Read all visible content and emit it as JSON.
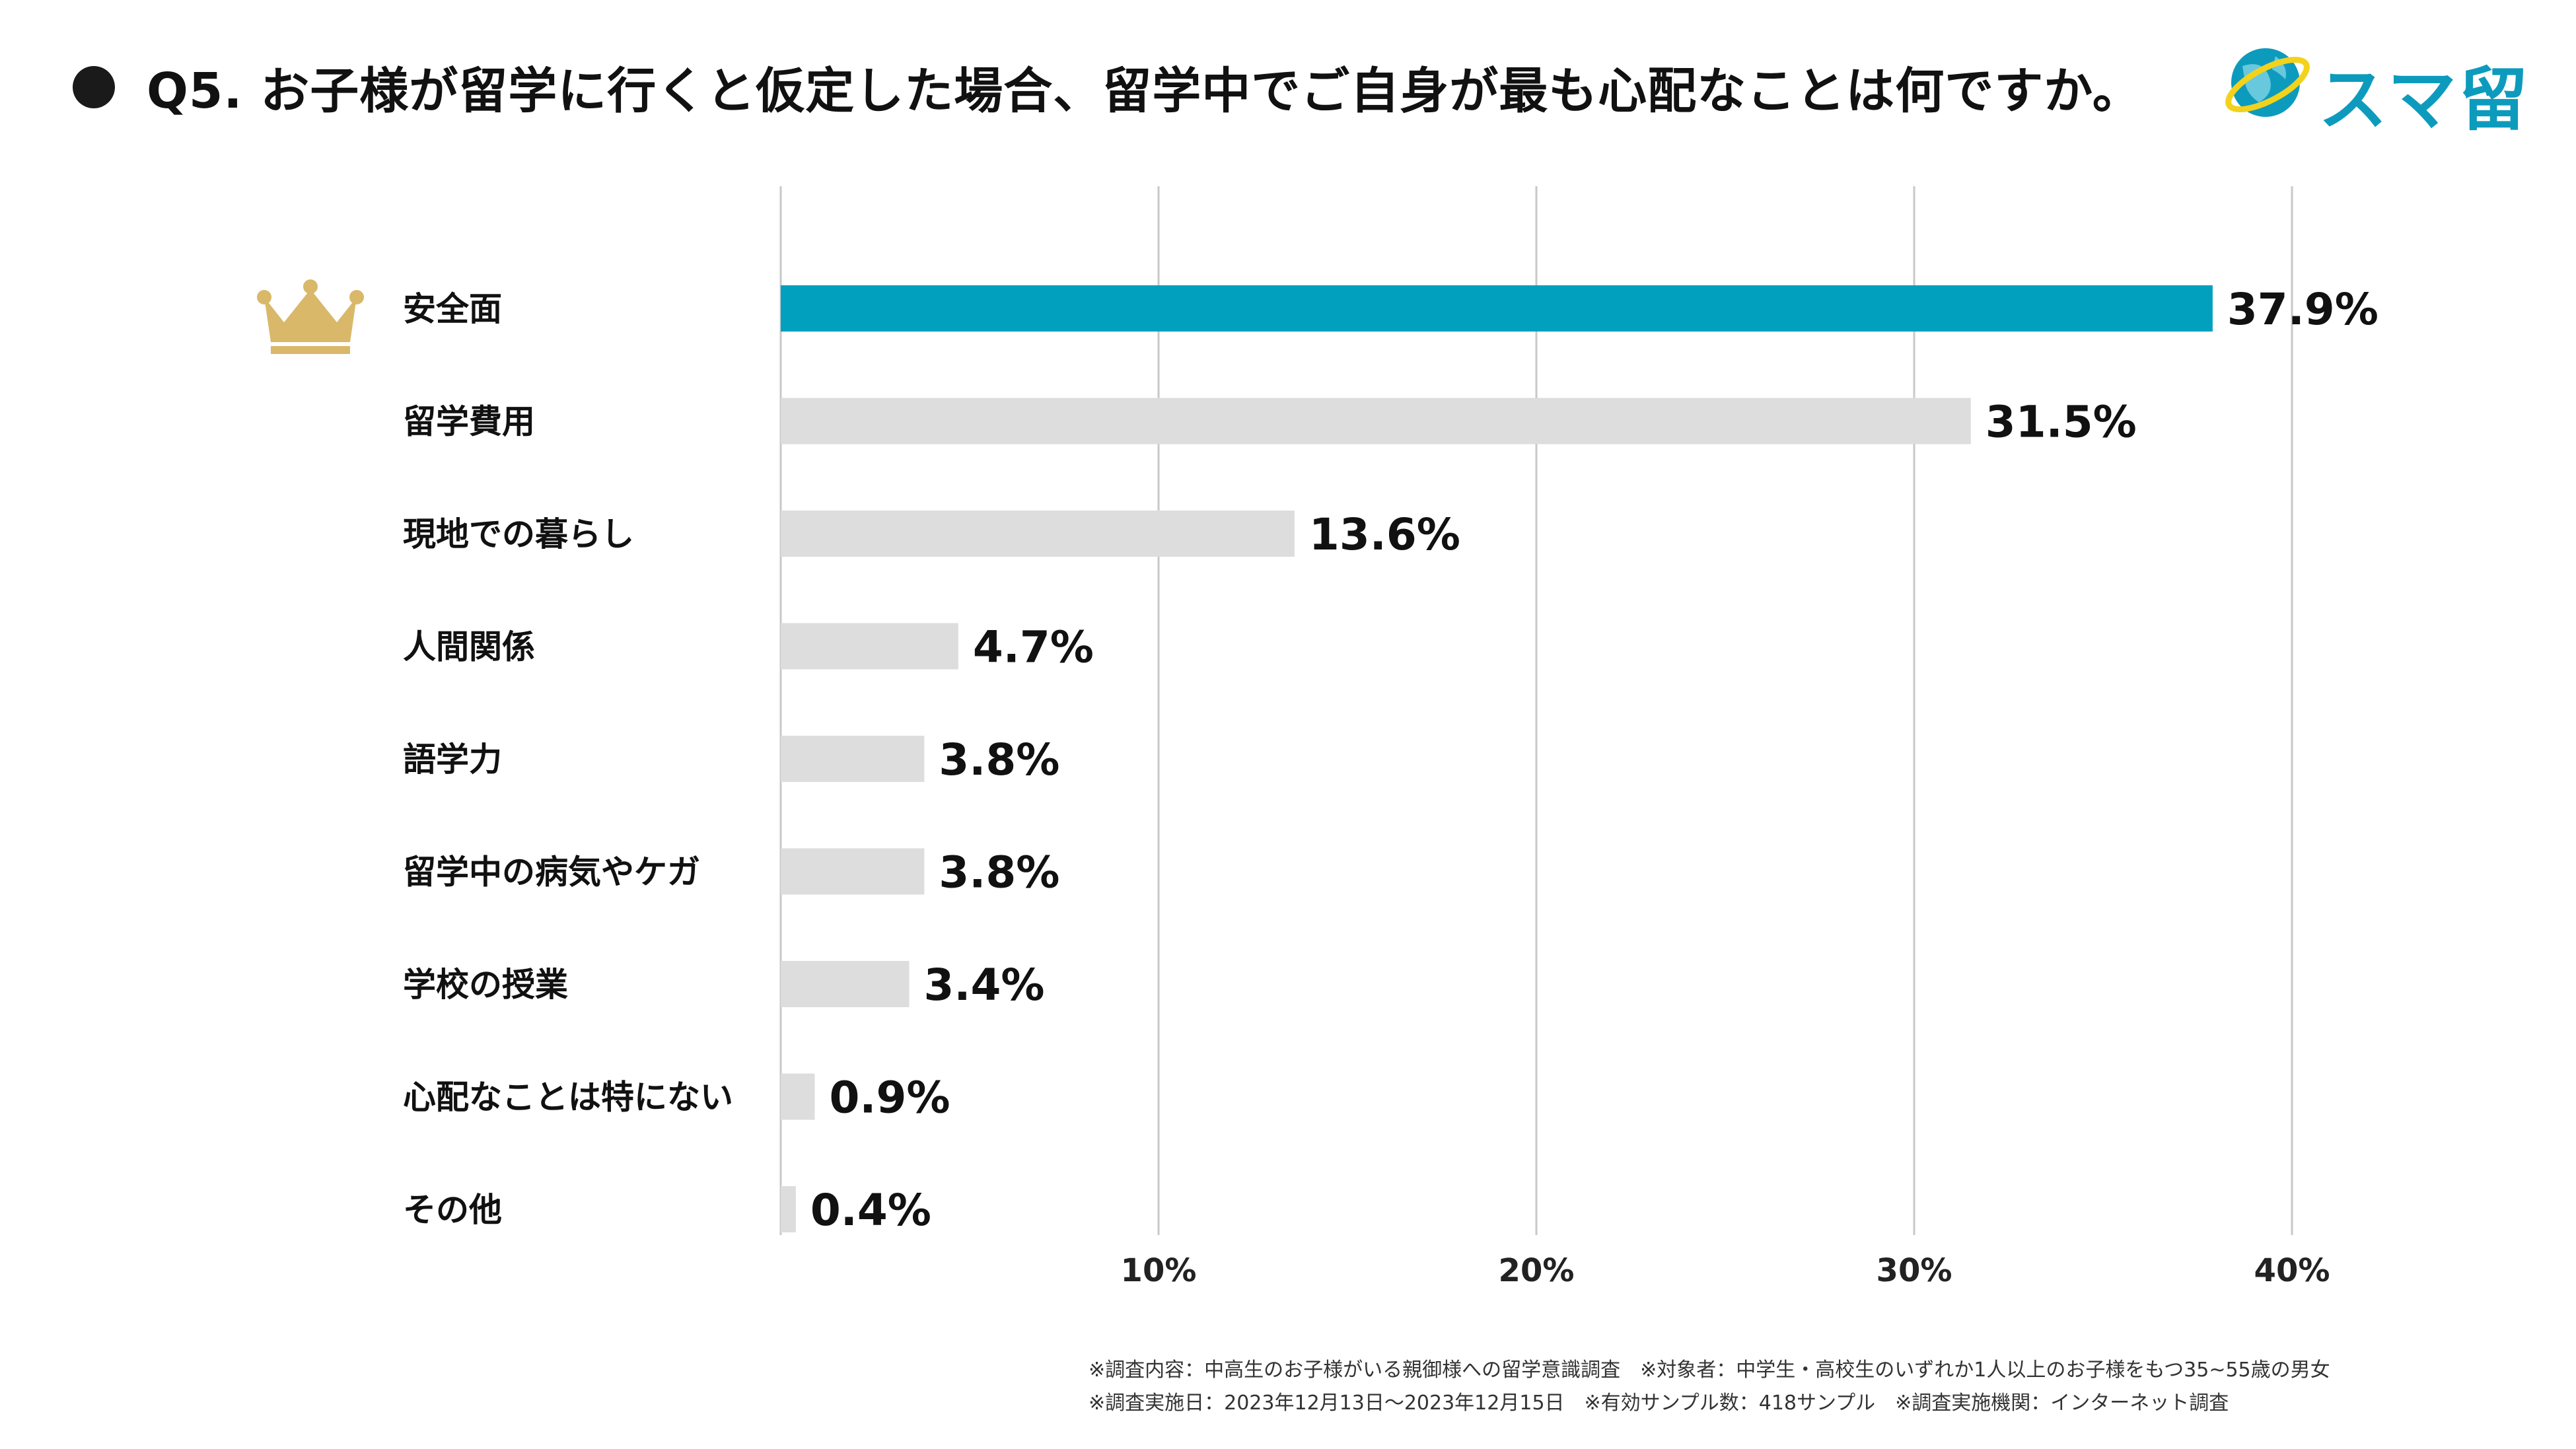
{
  "title": "Q5. お子様が留学に行くと仮定した場合、留学中でご自身が最も心配なことは何ですか。",
  "logo": {
    "text": "スマ留",
    "color": "#0d9bbd",
    "accent": "#f2d21c"
  },
  "crown_color": "#d9b86a",
  "colors": {
    "highlight": "#00a0be",
    "bar": "#dddddd",
    "grid": "#c8c8c8"
  },
  "chart_data": {
    "type": "bar",
    "orientation": "horizontal",
    "categories": [
      "安全面",
      "留学費用",
      "現地での暮らし",
      "人間関係",
      "語学力",
      "留学中の病気やケガ",
      "学校の授業",
      "心配なことは特にない",
      "その他"
    ],
    "values": [
      37.9,
      31.5,
      13.6,
      4.7,
      3.8,
      3.8,
      3.4,
      0.9,
      0.4
    ],
    "value_labels": [
      "37.9%",
      "31.5%",
      "13.6%",
      "4.7%",
      "3.8%",
      "3.8%",
      "3.4%",
      "0.9%",
      "0.4%"
    ],
    "xlim": [
      0,
      40
    ],
    "xticks": [
      10,
      20,
      30,
      40
    ],
    "xtick_labels": [
      "10%",
      "20%",
      "30%",
      "40%"
    ],
    "highlight_index": 0,
    "grid": true
  },
  "footnotes": [
    "※調査内容：中高生のお子様がいる親御様への留学意識調査　※対象者：中学生・高校生のいずれか1人以上のお子様をもつ35~55歳の男女",
    "※調査実施日：2023年12月13日～2023年12月15日　※有効サンプル数：418サンプル　※調査実施機関：インターネット調査"
  ]
}
